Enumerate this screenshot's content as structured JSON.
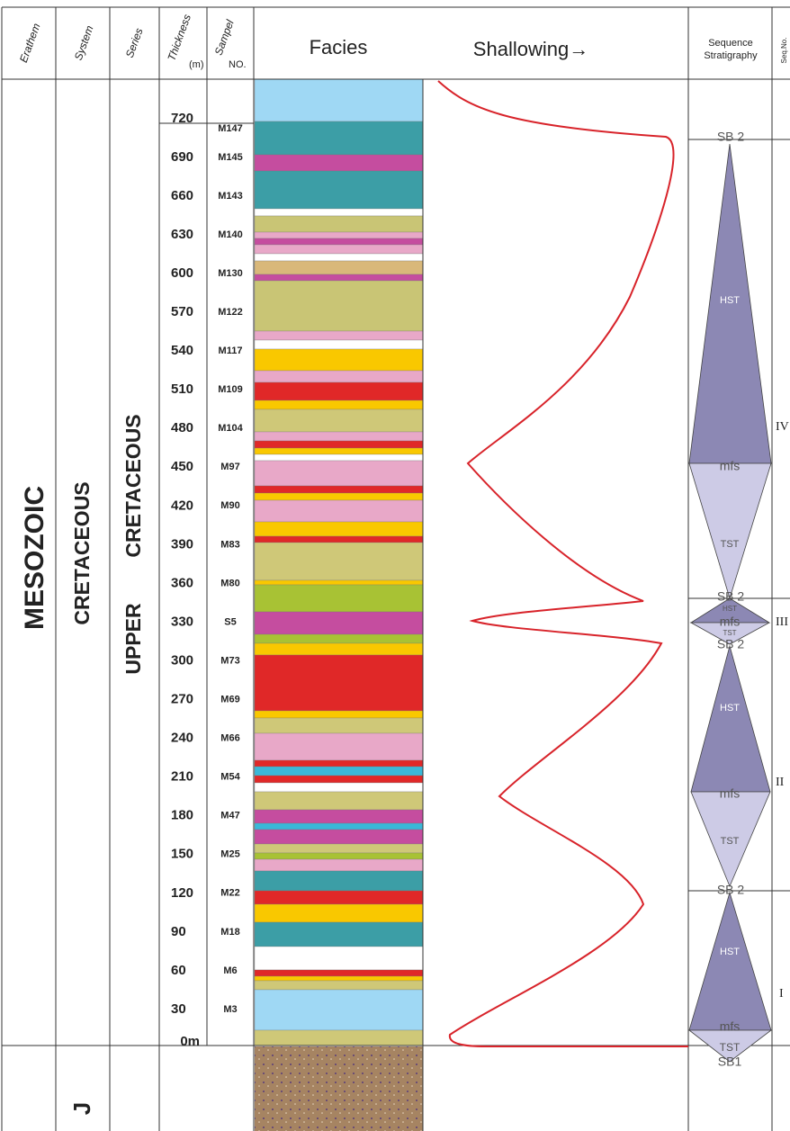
{
  "header": {
    "erathem": "Erathem",
    "system": "System",
    "series": "Series",
    "thickness": "Thickness",
    "thickness_unit": "(m)",
    "sample": "Sampel",
    "sample_no": "NO.",
    "facies": "Facies",
    "shallowing": "Shallowing→",
    "sequence": [
      "Sequence",
      "Stratigraphy"
    ],
    "seq_no": "Seq.No."
  },
  "erathem": "MESOZOIC",
  "system": "CRETACEOUS",
  "series": [
    "UPPER",
    "CRETACEOUS"
  ],
  "lower_system": "J",
  "thickness_ticks": [
    720,
    690,
    660,
    630,
    600,
    570,
    540,
    510,
    480,
    450,
    420,
    390,
    360,
    330,
    300,
    270,
    240,
    210,
    180,
    150,
    120,
    90,
    60,
    30,
    {
      "value": 0,
      "label": "0m"
    }
  ],
  "samples": [
    "M147",
    "M145",
    "M143",
    "M140",
    "M130",
    "M122",
    "M117",
    "M109",
    "M104",
    "M97",
    "M90",
    "M83",
    "M80",
    "S5",
    "M73",
    "M69",
    "M66",
    "M54",
    "M47",
    "M25",
    "M22",
    "M18",
    "M6",
    "M3"
  ],
  "sequences": [
    {
      "name": "IV",
      "labels": [
        "SB 2",
        "HST",
        "mfs",
        "TST"
      ]
    },
    {
      "name": "III",
      "labels": [
        "SB 2",
        "HST",
        "mfs",
        "TST"
      ]
    },
    {
      "name": "II",
      "labels": [
        "SB 2",
        "HST",
        "mfs",
        "TST"
      ]
    },
    {
      "name": "I",
      "labels": [
        "SB 2",
        "HST",
        "mfs",
        "TST",
        "SB1"
      ]
    }
  ]
}
